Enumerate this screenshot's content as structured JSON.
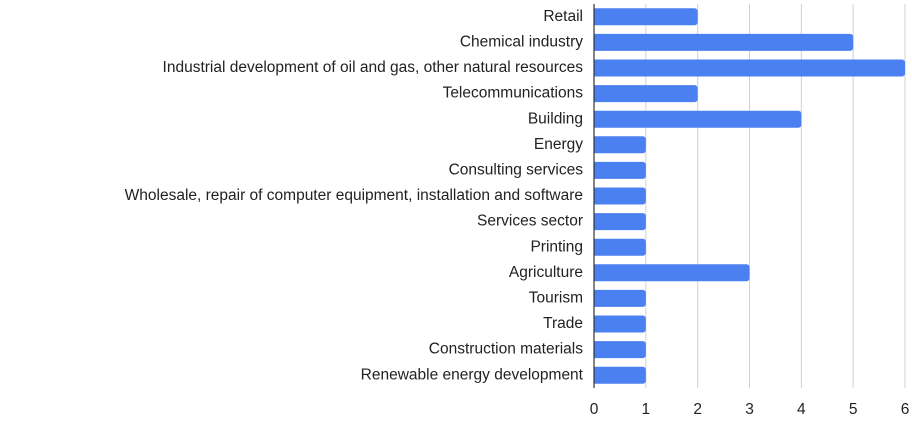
{
  "chart_data": {
    "type": "bar",
    "orientation": "horizontal",
    "categories": [
      "Retail",
      "Chemical industry",
      "Industrial development of oil and gas, other natural resources",
      "Telecommunications",
      "Building",
      "Energy",
      "Consulting services",
      "Wholesale, repair of computer equipment, installation and software",
      "Services sector",
      "Printing",
      "Agriculture",
      "Tourism",
      "Trade",
      "Construction materials",
      "Renewable energy development"
    ],
    "values": [
      2,
      5,
      6,
      2,
      4,
      1,
      1,
      1,
      1,
      1,
      3,
      1,
      1,
      1,
      1
    ],
    "color": "#4a80f0",
    "xlim": [
      0,
      6
    ],
    "xticks": [
      0,
      1,
      2,
      3,
      4,
      5,
      6
    ],
    "grid": true
  }
}
